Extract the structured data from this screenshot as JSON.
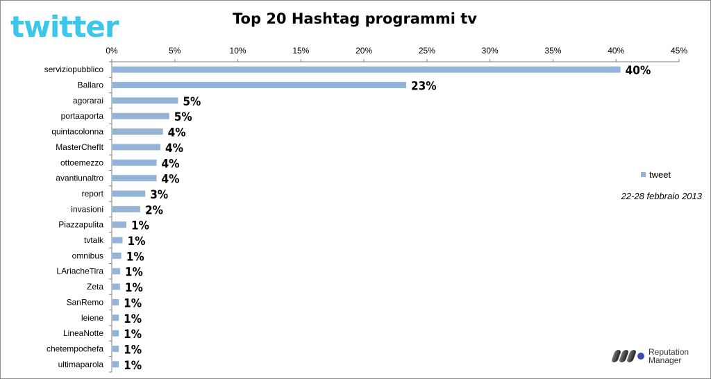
{
  "header": {
    "logo_text": "twitter",
    "title": "Top 20 Hashtag programmi tv"
  },
  "legend": {
    "label": "tweet"
  },
  "note": "22-28 febbraio 2013",
  "footer_logo": {
    "line1": "Reputation",
    "line2": "Manager"
  },
  "colors": {
    "bar": "#95b3d7",
    "logo": "#3bc6ea",
    "grid": "#b0b0b0"
  },
  "chart_data": {
    "type": "bar",
    "orientation": "horizontal",
    "title": "Top 20 Hashtag programmi tv",
    "xlabel": "",
    "ylabel": "",
    "xlim": [
      0,
      45
    ],
    "x_ticks": [
      "0%",
      "5%",
      "10%",
      "15%",
      "20%",
      "25%",
      "30%",
      "35%",
      "40%",
      "45%"
    ],
    "axis_position": "top",
    "grid": false,
    "legend_position": "right",
    "categories": [
      "serviziopubblico",
      "Ballaro",
      "agorarai",
      "portaaporta",
      "quintacolonna",
      "MasterChefIt",
      "ottoemezzo",
      "avantiunaltro",
      "report",
      "invasioni",
      "Piazzapulita",
      "tvtalk",
      "omnibus",
      "LAriacheTira",
      "Zeta",
      "SanRemo",
      "leiene",
      "LineaNotte",
      "chetempochefa",
      "ultimaparola"
    ],
    "series": [
      {
        "name": "tweet",
        "values": [
          40.3,
          23.3,
          5.2,
          4.5,
          4.0,
          3.8,
          3.5,
          3.5,
          2.6,
          2.2,
          1.1,
          0.8,
          0.7,
          0.6,
          0.6,
          0.5,
          0.5,
          0.5,
          0.5,
          0.5
        ],
        "data_labels": [
          "40%",
          "23%",
          "5%",
          "5%",
          "4%",
          "4%",
          "4%",
          "4%",
          "3%",
          "2%",
          "1%",
          "1%",
          "1%",
          "1%",
          "1%",
          "1%",
          "1%",
          "1%",
          "1%",
          "1%"
        ]
      }
    ]
  }
}
